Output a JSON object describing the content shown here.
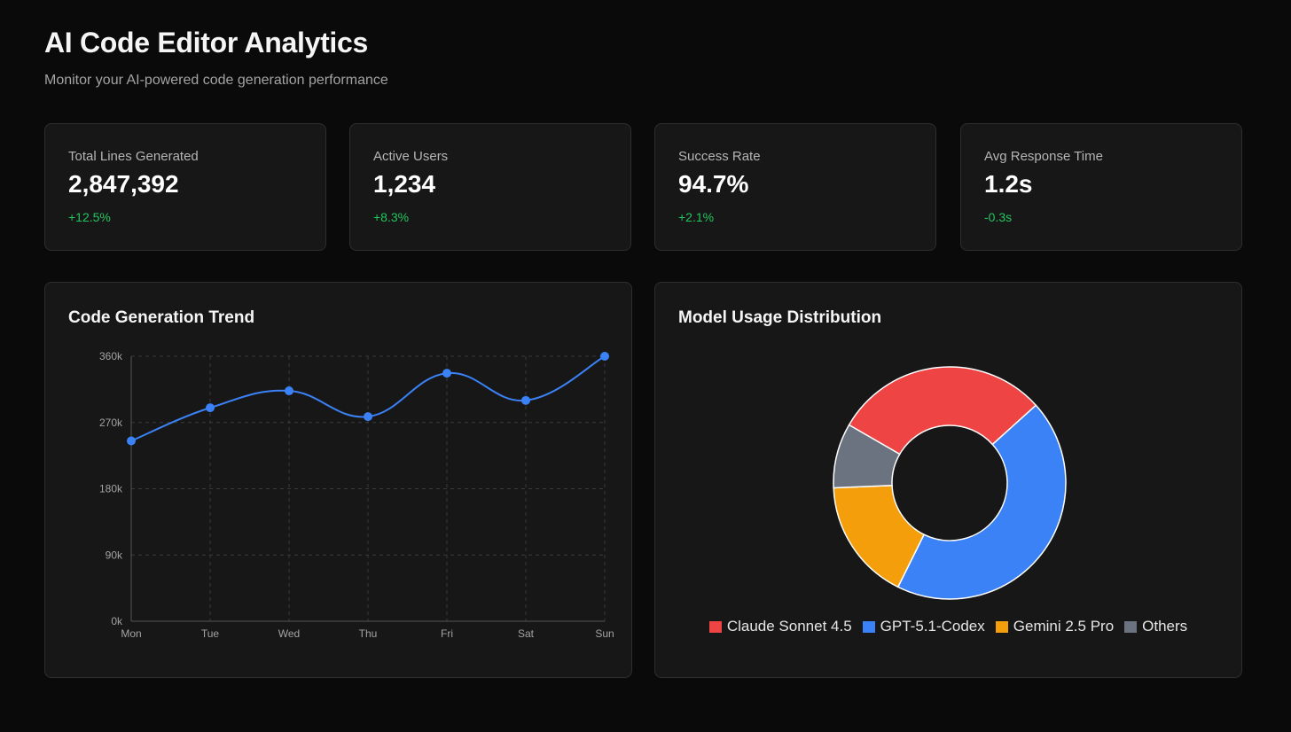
{
  "header": {
    "title": "AI Code Editor Analytics",
    "subtitle": "Monitor your AI-powered code generation performance"
  },
  "stats": [
    {
      "label": "Total Lines Generated",
      "value": "2,847,392",
      "change": "+12.5%"
    },
    {
      "label": "Active Users",
      "value": "1,234",
      "change": "+8.3%"
    },
    {
      "label": "Success Rate",
      "value": "94.7%",
      "change": "+2.1%"
    },
    {
      "label": "Avg Response Time",
      "value": "1.2s",
      "change": "-0.3s"
    }
  ],
  "colors": {
    "background": "#0a0a0a",
    "card": "#171717",
    "positive": "#22c55e",
    "line": "#3b82f6"
  },
  "chart_data": [
    {
      "type": "line",
      "title": "Code Generation Trend",
      "categories": [
        "Mon",
        "Tue",
        "Wed",
        "Thu",
        "Fri",
        "Sat",
        "Sun"
      ],
      "values": [
        245000,
        290000,
        313000,
        278000,
        337000,
        300000,
        360000
      ],
      "yticks": [
        0,
        90000,
        180000,
        270000,
        360000
      ],
      "ytick_labels": [
        "0k",
        "90k",
        "180k",
        "270k",
        "360k"
      ],
      "ylim": [
        0,
        360000
      ],
      "grid": true,
      "color": "#3b82f6"
    },
    {
      "type": "pie",
      "title": "Model Usage Distribution",
      "slices": [
        {
          "label": "Claude Sonnet 4.5",
          "value": 30,
          "color": "#ef4444"
        },
        {
          "label": "GPT-5.1-Codex",
          "value": 44,
          "color": "#3b82f6"
        },
        {
          "label": "Gemini 2.5 Pro",
          "value": 17,
          "color": "#f59e0b"
        },
        {
          "label": "Others",
          "value": 9,
          "color": "#6b7280"
        }
      ],
      "legend_position": "bottom"
    }
  ]
}
